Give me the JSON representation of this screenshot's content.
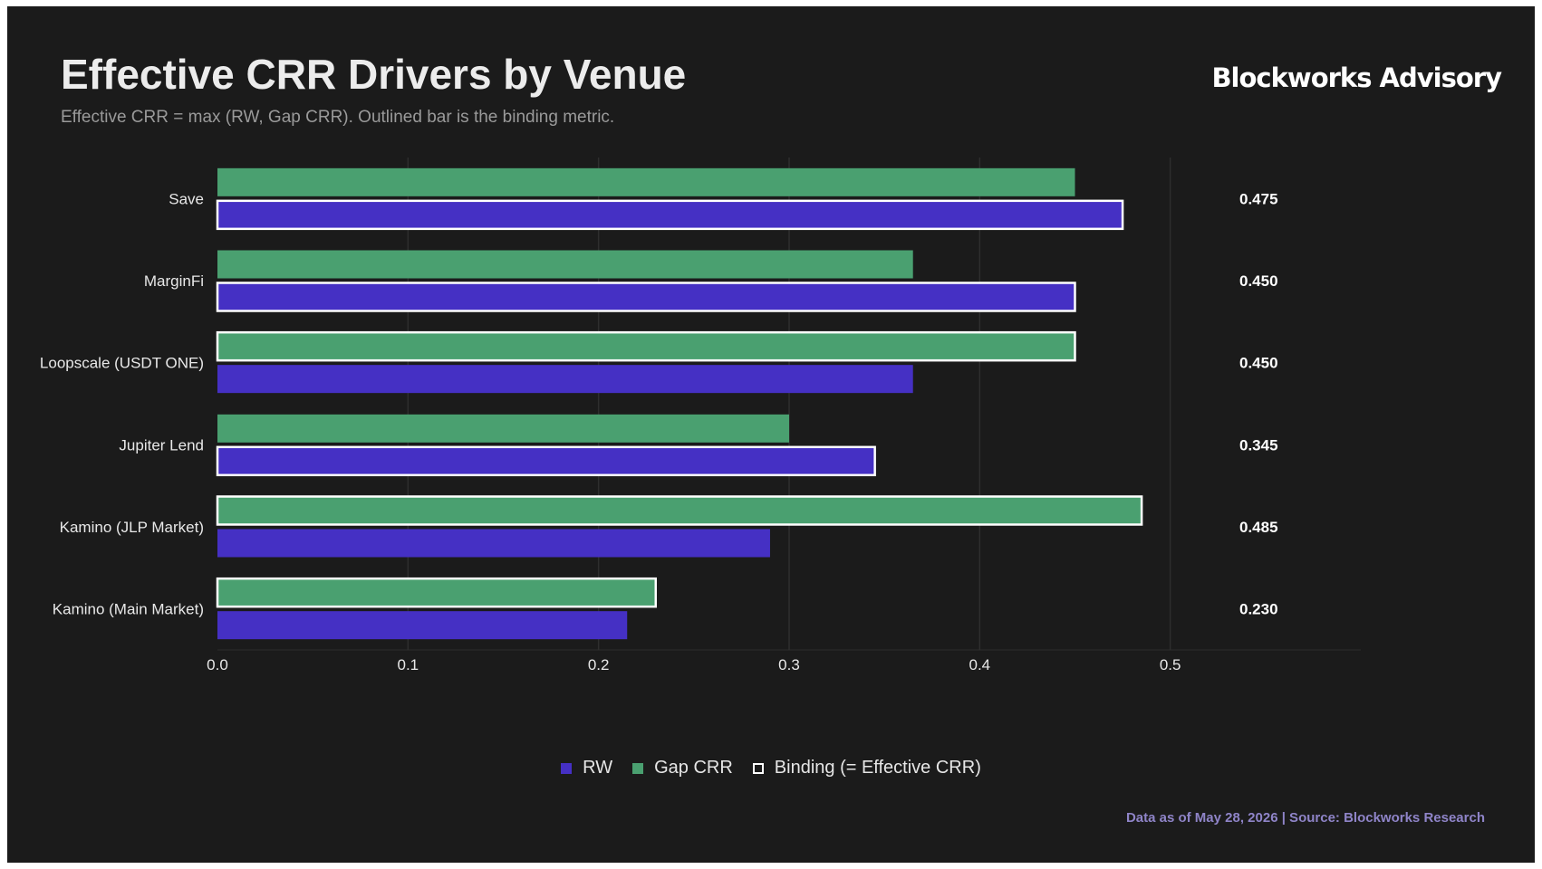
{
  "header": {
    "title": "Effective CRR Drivers by Venue",
    "subtitle": "Effective CRR = max (RW, Gap CRR). Outlined bar is the binding metric.",
    "brand": "Blockworks Advisory"
  },
  "footer": {
    "text": "Data as of May 28, 2026 | Source: Blockworks Research",
    "color": "#8f84c8"
  },
  "legend": {
    "rw": "RW",
    "gap": "Gap CRR",
    "binding": "Binding (= Effective CRR)"
  },
  "chart_data": {
    "type": "bar",
    "orientation": "horizontal",
    "title": "Effective CRR Drivers by Venue",
    "subtitle": "Effective CRR = max (RW, Gap CRR). Outlined bar is the binding metric.",
    "categories": [
      "Save",
      "MarginFi",
      "Loopscale (USDT ONE)",
      "Jupiter Lend",
      "Kamino (JLP Market)",
      "Kamino (Main Market)"
    ],
    "series": [
      {
        "name": "Gap CRR",
        "values": [
          0.45,
          0.365,
          0.45,
          0.3,
          0.485,
          0.23
        ],
        "color": "#4aa070"
      },
      {
        "name": "RW",
        "values": [
          0.475,
          0.45,
          0.365,
          0.345,
          0.29,
          0.215
        ],
        "color": "#4530c4"
      }
    ],
    "binding": [
      "RW",
      "RW",
      "Gap CRR",
      "RW",
      "Gap CRR",
      "Gap CRR"
    ],
    "effective_crr_labels": [
      "0.475",
      "0.450",
      "0.450",
      "0.345",
      "0.485",
      "0.230"
    ],
    "xlim": [
      0,
      0.6
    ],
    "xticks": [
      0.0,
      0.1,
      0.2,
      0.3,
      0.4,
      0.5
    ],
    "xtick_labels": [
      "0.0",
      "0.1",
      "0.2",
      "0.3",
      "0.4",
      "0.5"
    ],
    "grid": "vertical",
    "legend_position": "bottom-center",
    "colors": {
      "background": "#1b1b1b",
      "grid": "#2e2e2e",
      "outline": "#ffffff",
      "text": "#e8e8e8"
    }
  }
}
